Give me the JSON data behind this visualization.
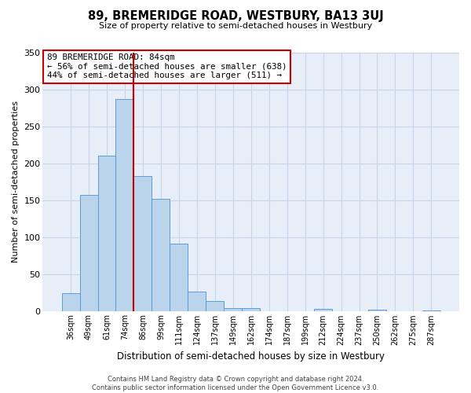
{
  "title": "89, BREMERIDGE ROAD, WESTBURY, BA13 3UJ",
  "subtitle": "Size of property relative to semi-detached houses in Westbury",
  "xlabel": "Distribution of semi-detached houses by size in Westbury",
  "ylabel": "Number of semi-detached properties",
  "annotation_title": "89 BREMERIDGE ROAD: 84sqm",
  "annotation_line1": "← 56% of semi-detached houses are smaller (638)",
  "annotation_line2": "44% of semi-detached houses are larger (511) →",
  "categories": [
    "36sqm",
    "49sqm",
    "61sqm",
    "74sqm",
    "86sqm",
    "99sqm",
    "111sqm",
    "124sqm",
    "137sqm",
    "149sqm",
    "162sqm",
    "174sqm",
    "187sqm",
    "199sqm",
    "212sqm",
    "224sqm",
    "237sqm",
    "250sqm",
    "262sqm",
    "275sqm",
    "287sqm"
  ],
  "bar_values": [
    25,
    157,
    210,
    287,
    183,
    152,
    92,
    27,
    14,
    5,
    5,
    0,
    0,
    0,
    4,
    0,
    0,
    3,
    0,
    0,
    2
  ],
  "bar_color": "#bad4ec",
  "bar_edge_color": "#5b9bd5",
  "vline_x_index": 3,
  "vline_color": "#cc0000",
  "ylim": [
    0,
    350
  ],
  "yticks": [
    0,
    50,
    100,
    150,
    200,
    250,
    300,
    350
  ],
  "grid_color": "#c8d4e8",
  "bg_color": "#e8eef8",
  "annotation_box_color": "#ffffff",
  "annotation_box_edge": "#cc0000",
  "footer_line1": "Contains HM Land Registry data © Crown copyright and database right 2024.",
  "footer_line2": "Contains public sector information licensed under the Open Government Licence v3.0."
}
